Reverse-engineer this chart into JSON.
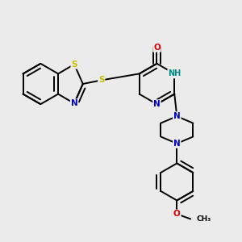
{
  "background_color": "#ebebeb",
  "fig_size": [
    3.0,
    3.0
  ],
  "dpi": 100,
  "bond_color": "#000000",
  "bond_width": 1.4,
  "atom_colors": {
    "C": "#000000",
    "N": "#0000cc",
    "O": "#dd0000",
    "S": "#ccbb00",
    "H": "#008888"
  }
}
